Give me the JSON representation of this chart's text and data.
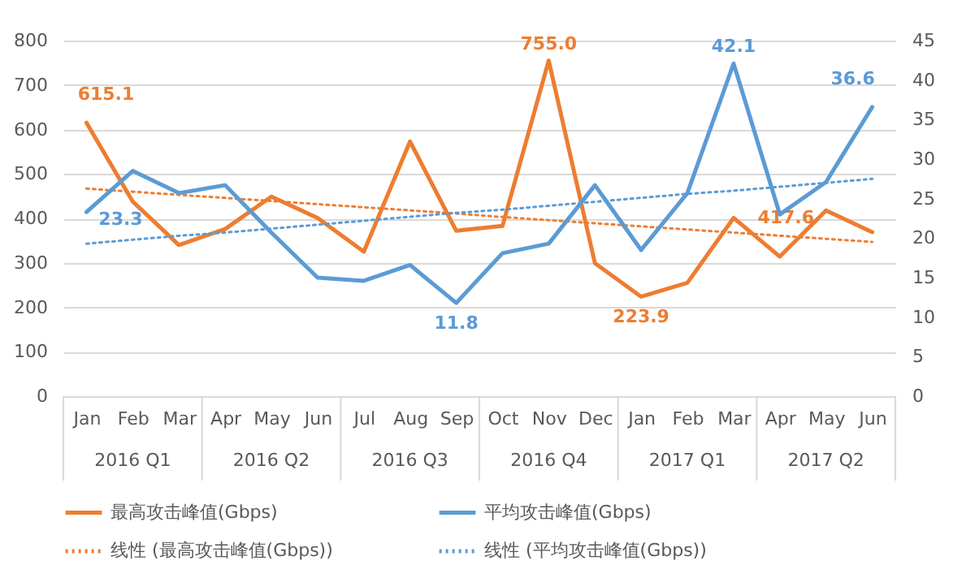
{
  "chart_data": {
    "type": "line",
    "categories": [
      "Jan",
      "Feb",
      "Mar",
      "Apr",
      "May",
      "Jun",
      "Jul",
      "Aug",
      "Sep",
      "Oct",
      "Nov",
      "Dec",
      "Jan",
      "Feb",
      "Mar",
      "Apr",
      "May",
      "Jun"
    ],
    "series": [
      {
        "name": "最高攻击峰值(Gbps)",
        "type": "line",
        "color": "#ed7d31",
        "line_style": "solid",
        "values": [
          615.1,
          438,
          340,
          376,
          449,
          401,
          325,
          573,
          372,
          383,
          755.0,
          299,
          223.9,
          255,
          401,
          314,
          417.6,
          369
        ],
        "value_labels": [
          "615.1",
          null,
          null,
          null,
          null,
          null,
          null,
          null,
          null,
          null,
          "755.0",
          null,
          "223.9",
          null,
          null,
          null,
          "417.6",
          null
        ]
      },
      {
        "name": "平均攻击峰值(Gbps)",
        "type": "line",
        "axis": "y2",
        "color": "#5b9bd5",
        "line_style": "solid",
        "values": [
          23.3,
          28.5,
          25.7,
          26.7,
          20.7,
          15.0,
          14.6,
          16.6,
          11.8,
          18.1,
          19.3,
          26.7,
          18.5,
          25.7,
          42.1,
          23.0,
          27.1,
          36.6
        ],
        "value_labels": [
          "23.3",
          null,
          null,
          null,
          null,
          null,
          null,
          null,
          "11.8",
          null,
          null,
          null,
          null,
          null,
          "42.1",
          null,
          null,
          "36.6"
        ]
      },
      {
        "name": "线性 (最高攻击峰值(Gbps))",
        "type": "line",
        "color": "#ed7d31",
        "line_style": "dotted",
        "values": [
          467,
          460,
          453,
          446,
          439,
          432,
          425,
          418,
          411,
          403,
          396,
          389,
          382,
          375,
          368,
          361,
          354,
          347
        ]
      },
      {
        "name": "线性 (平均攻击峰值(Gbps))",
        "type": "line",
        "axis": "y2",
        "color": "#5b9bd5",
        "line_style": "dotted",
        "values": [
          19.3,
          19.8,
          20.3,
          20.7,
          21.2,
          21.7,
          22.2,
          22.7,
          23.2,
          23.6,
          24.1,
          24.6,
          25.1,
          25.6,
          26.0,
          26.5,
          27.0,
          27.5
        ]
      }
    ],
    "annotations": [
      "2016 Q1",
      "2016 Q2",
      "2016 Q3",
      "2016 Q4",
      "2017 Q1",
      "2017 Q2"
    ],
    "ylim": [
      0,
      800
    ],
    "yticks": [
      0,
      100,
      200,
      300,
      400,
      500,
      600,
      700,
      800
    ],
    "y2lim": [
      0,
      45
    ],
    "y2ticks": [
      0,
      5,
      10,
      15,
      20,
      25,
      30,
      35,
      40,
      45
    ],
    "grid": "y",
    "legend": "bottom"
  }
}
